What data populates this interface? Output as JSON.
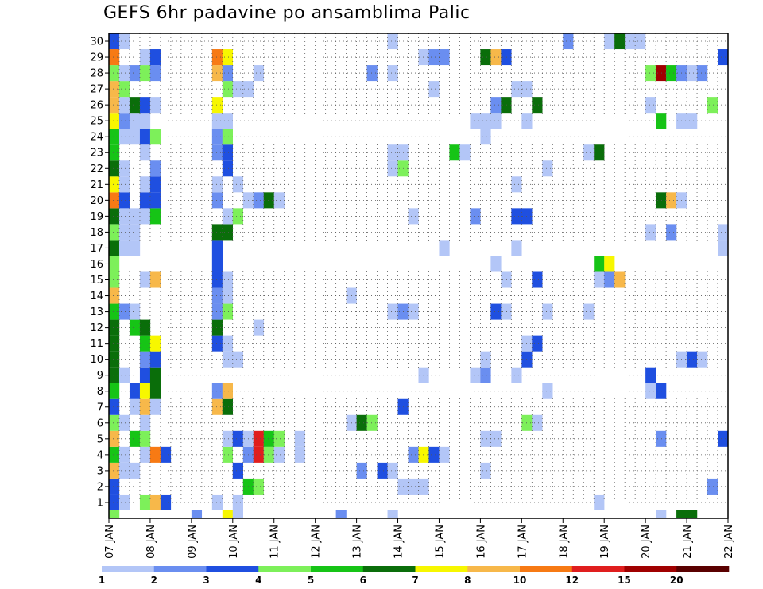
{
  "chart_data": {
    "type": "heatmap",
    "title": "GEFS 6hr padavine po ansamblima Palic",
    "xlabel": "",
    "ylabel": "",
    "x_ticks": [
      "07 JAN",
      "08 JAN",
      "09 JAN",
      "10 JAN",
      "11 JAN",
      "12 JAN",
      "13 JAN",
      "14 JAN",
      "15 JAN",
      "16 JAN",
      "17 JAN",
      "18 JAN",
      "19 JAN",
      "20 JAN",
      "21 JAN",
      "22 JAN"
    ],
    "y_ticks": [
      1,
      2,
      3,
      4,
      5,
      6,
      7,
      8,
      9,
      10,
      11,
      12,
      13,
      14,
      15,
      16,
      17,
      18,
      19,
      20,
      21,
      22,
      23,
      24,
      25,
      26,
      27,
      28,
      29,
      30
    ],
    "xlim": [
      0,
      60
    ],
    "ylim": [
      0,
      30
    ],
    "time_step_hours": 6,
    "grid": "dotted",
    "colorbar": {
      "position": "bottom",
      "labels": [
        "1",
        "2",
        "3",
        "4",
        "5",
        "6",
        "7",
        "8",
        "10",
        "12",
        "15",
        "20"
      ],
      "colors": [
        "#b3c6f7",
        "#6a8ef0",
        "#1f4fe0",
        "#7df05a",
        "#16c416",
        "#0a6e0a",
        "#f7f700",
        "#f7b84a",
        "#f77a14",
        "#e01e1e",
        "#a00000",
        "#5a0000"
      ]
    },
    "cells": [
      [
        0,
        0,
        4
      ],
      [
        8,
        0,
        2
      ],
      [
        11,
        0,
        7
      ],
      [
        12,
        0,
        1
      ],
      [
        22,
        0,
        2
      ],
      [
        27,
        0,
        1
      ],
      [
        53,
        0,
        1
      ],
      [
        55,
        0,
        6
      ],
      [
        56,
        0,
        6
      ],
      [
        0,
        1,
        3
      ],
      [
        1,
        1,
        1
      ],
      [
        3,
        1,
        4
      ],
      [
        4,
        1,
        8
      ],
      [
        5,
        1,
        3
      ],
      [
        10,
        1,
        1
      ],
      [
        12,
        1,
        1
      ],
      [
        47,
        1,
        1
      ],
      [
        0,
        2,
        3
      ],
      [
        13,
        2,
        5
      ],
      [
        14,
        2,
        4
      ],
      [
        28,
        2,
        1
      ],
      [
        29,
        2,
        1
      ],
      [
        30,
        2,
        1
      ],
      [
        58,
        2,
        2
      ],
      [
        60,
        2,
        1
      ],
      [
        62,
        2,
        2
      ],
      [
        63,
        2,
        1
      ],
      [
        64,
        2,
        1
      ],
      [
        0,
        3,
        8
      ],
      [
        1,
        3,
        1
      ],
      [
        2,
        3,
        1
      ],
      [
        12,
        3,
        3
      ],
      [
        24,
        3,
        2
      ],
      [
        26,
        3,
        3
      ],
      [
        27,
        3,
        1
      ],
      [
        36,
        3,
        1
      ],
      [
        0,
        4,
        5
      ],
      [
        1,
        4,
        1
      ],
      [
        3,
        4,
        1
      ],
      [
        4,
        4,
        9
      ],
      [
        5,
        4,
        3
      ],
      [
        11,
        4,
        4
      ],
      [
        13,
        4,
        2
      ],
      [
        14,
        4,
        10
      ],
      [
        15,
        4,
        4
      ],
      [
        16,
        4,
        1
      ],
      [
        18,
        4,
        1
      ],
      [
        29,
        4,
        2
      ],
      [
        30,
        4,
        7
      ],
      [
        31,
        4,
        3
      ],
      [
        32,
        4,
        1
      ],
      [
        0,
        5,
        8
      ],
      [
        2,
        5,
        5
      ],
      [
        3,
        5,
        4
      ],
      [
        11,
        5,
        1
      ],
      [
        12,
        5,
        3
      ],
      [
        13,
        5,
        1
      ],
      [
        14,
        5,
        10
      ],
      [
        15,
        5,
        5
      ],
      [
        16,
        5,
        4
      ],
      [
        18,
        5,
        1
      ],
      [
        36,
        5,
        1
      ],
      [
        37,
        5,
        1
      ],
      [
        53,
        5,
        2
      ],
      [
        59,
        5,
        3
      ],
      [
        60,
        5,
        7
      ],
      [
        0,
        6,
        4
      ],
      [
        1,
        6,
        1
      ],
      [
        3,
        6,
        1
      ],
      [
        23,
        6,
        1
      ],
      [
        24,
        6,
        6
      ],
      [
        25,
        6,
        4
      ],
      [
        40,
        6,
        4
      ],
      [
        41,
        6,
        1
      ],
      [
        0,
        7,
        3
      ],
      [
        2,
        7,
        1
      ],
      [
        3,
        7,
        8
      ],
      [
        4,
        7,
        1
      ],
      [
        10,
        7,
        8
      ],
      [
        11,
        7,
        6
      ],
      [
        28,
        7,
        3
      ],
      [
        0,
        8,
        5
      ],
      [
        2,
        8,
        3
      ],
      [
        3,
        8,
        7
      ],
      [
        4,
        8,
        6
      ],
      [
        10,
        8,
        2
      ],
      [
        11,
        8,
        8
      ],
      [
        42,
        8,
        1
      ],
      [
        52,
        8,
        1
      ],
      [
        53,
        8,
        3
      ],
      [
        0,
        9,
        6
      ],
      [
        1,
        9,
        1
      ],
      [
        3,
        9,
        3
      ],
      [
        4,
        9,
        6
      ],
      [
        30,
        9,
        1
      ],
      [
        35,
        9,
        1
      ],
      [
        36,
        9,
        2
      ],
      [
        39,
        9,
        1
      ],
      [
        52,
        9,
        3
      ],
      [
        0,
        10,
        6
      ],
      [
        3,
        10,
        2
      ],
      [
        4,
        10,
        3
      ],
      [
        11,
        10,
        1
      ],
      [
        12,
        10,
        1
      ],
      [
        36,
        10,
        1
      ],
      [
        40,
        10,
        3
      ],
      [
        55,
        10,
        1
      ],
      [
        56,
        10,
        3
      ],
      [
        57,
        10,
        1
      ],
      [
        0,
        11,
        6
      ],
      [
        3,
        11,
        5
      ],
      [
        4,
        11,
        7
      ],
      [
        10,
        11,
        3
      ],
      [
        11,
        11,
        1
      ],
      [
        40,
        11,
        1
      ],
      [
        41,
        11,
        3
      ],
      [
        0,
        12,
        6
      ],
      [
        2,
        12,
        5
      ],
      [
        3,
        12,
        6
      ],
      [
        10,
        12,
        6
      ],
      [
        14,
        12,
        1
      ],
      [
        0,
        13,
        5
      ],
      [
        1,
        13,
        2
      ],
      [
        2,
        13,
        1
      ],
      [
        10,
        13,
        2
      ],
      [
        11,
        13,
        4
      ],
      [
        27,
        13,
        1
      ],
      [
        28,
        13,
        2
      ],
      [
        29,
        13,
        1
      ],
      [
        37,
        13,
        3
      ],
      [
        38,
        13,
        1
      ],
      [
        42,
        13,
        1
      ],
      [
        46,
        13,
        1
      ],
      [
        0,
        14,
        8
      ],
      [
        10,
        14,
        2
      ],
      [
        11,
        14,
        1
      ],
      [
        23,
        14,
        1
      ],
      [
        0,
        15,
        4
      ],
      [
        3,
        15,
        1
      ],
      [
        4,
        15,
        8
      ],
      [
        10,
        15,
        3
      ],
      [
        11,
        15,
        1
      ],
      [
        38,
        15,
        1
      ],
      [
        41,
        15,
        3
      ],
      [
        47,
        15,
        1
      ],
      [
        48,
        15,
        2
      ],
      [
        49,
        15,
        8
      ],
      [
        0,
        16,
        4
      ],
      [
        10,
        16,
        3
      ],
      [
        37,
        16,
        1
      ],
      [
        47,
        16,
        5
      ],
      [
        48,
        16,
        7
      ],
      [
        60,
        16,
        1
      ],
      [
        0,
        17,
        6
      ],
      [
        1,
        17,
        1
      ],
      [
        2,
        17,
        1
      ],
      [
        10,
        17,
        3
      ],
      [
        32,
        17,
        1
      ],
      [
        39,
        17,
        1
      ],
      [
        59,
        17,
        1
      ],
      [
        0,
        18,
        4
      ],
      [
        1,
        18,
        1
      ],
      [
        2,
        18,
        1
      ],
      [
        10,
        18,
        6
      ],
      [
        11,
        18,
        6
      ],
      [
        52,
        18,
        1
      ],
      [
        54,
        18,
        2
      ],
      [
        59,
        18,
        1
      ],
      [
        0,
        19,
        6
      ],
      [
        1,
        19,
        1
      ],
      [
        2,
        19,
        1
      ],
      [
        3,
        19,
        1
      ],
      [
        4,
        19,
        5
      ],
      [
        11,
        19,
        1
      ],
      [
        12,
        19,
        4
      ],
      [
        29,
        19,
        1
      ],
      [
        35,
        19,
        2
      ],
      [
        39,
        19,
        3
      ],
      [
        40,
        19,
        3
      ],
      [
        0,
        20,
        9
      ],
      [
        1,
        20,
        3
      ],
      [
        3,
        20,
        3
      ],
      [
        4,
        20,
        3
      ],
      [
        10,
        20,
        2
      ],
      [
        13,
        20,
        1
      ],
      [
        14,
        20,
        2
      ],
      [
        15,
        20,
        6
      ],
      [
        16,
        20,
        1
      ],
      [
        53,
        20,
        6
      ],
      [
        54,
        20,
        8
      ],
      [
        55,
        20,
        1
      ],
      [
        0,
        21,
        7
      ],
      [
        1,
        21,
        1
      ],
      [
        3,
        21,
        1
      ],
      [
        4,
        21,
        3
      ],
      [
        10,
        21,
        1
      ],
      [
        12,
        21,
        1
      ],
      [
        39,
        21,
        1
      ],
      [
        0,
        22,
        6
      ],
      [
        1,
        22,
        1
      ],
      [
        4,
        22,
        2
      ],
      [
        11,
        22,
        3
      ],
      [
        27,
        22,
        1
      ],
      [
        28,
        22,
        4
      ],
      [
        42,
        22,
        1
      ],
      [
        0,
        23,
        5
      ],
      [
        3,
        23,
        1
      ],
      [
        10,
        23,
        2
      ],
      [
        11,
        23,
        3
      ],
      [
        27,
        23,
        1
      ],
      [
        28,
        23,
        1
      ],
      [
        33,
        23,
        5
      ],
      [
        34,
        23,
        1
      ],
      [
        46,
        23,
        1
      ],
      [
        47,
        23,
        6
      ],
      [
        0,
        24,
        5
      ],
      [
        1,
        24,
        1
      ],
      [
        2,
        24,
        1
      ],
      [
        3,
        24,
        3
      ],
      [
        4,
        24,
        4
      ],
      [
        10,
        24,
        2
      ],
      [
        11,
        24,
        4
      ],
      [
        36,
        24,
        1
      ],
      [
        0,
        25,
        7
      ],
      [
        1,
        25,
        2
      ],
      [
        2,
        25,
        1
      ],
      [
        3,
        25,
        1
      ],
      [
        10,
        25,
        1
      ],
      [
        11,
        25,
        1
      ],
      [
        35,
        25,
        1
      ],
      [
        36,
        25,
        1
      ],
      [
        37,
        25,
        1
      ],
      [
        40,
        25,
        1
      ],
      [
        53,
        25,
        5
      ],
      [
        55,
        25,
        1
      ],
      [
        56,
        25,
        1
      ],
      [
        0,
        26,
        8
      ],
      [
        1,
        26,
        1
      ],
      [
        2,
        26,
        6
      ],
      [
        3,
        26,
        3
      ],
      [
        4,
        26,
        1
      ],
      [
        10,
        26,
        7
      ],
      [
        37,
        26,
        2
      ],
      [
        38,
        26,
        6
      ],
      [
        41,
        26,
        6
      ],
      [
        52,
        26,
        1
      ],
      [
        58,
        26,
        4
      ],
      [
        60,
        26,
        2
      ],
      [
        0,
        27,
        8
      ],
      [
        1,
        27,
        4
      ],
      [
        11,
        27,
        4
      ],
      [
        12,
        27,
        1
      ],
      [
        13,
        27,
        1
      ],
      [
        31,
        27,
        1
      ],
      [
        39,
        27,
        1
      ],
      [
        40,
        27,
        1
      ],
      [
        0,
        28,
        4
      ],
      [
        1,
        28,
        1
      ],
      [
        2,
        28,
        2
      ],
      [
        3,
        28,
        4
      ],
      [
        4,
        28,
        2
      ],
      [
        10,
        28,
        8
      ],
      [
        11,
        28,
        2
      ],
      [
        14,
        28,
        1
      ],
      [
        25,
        28,
        2
      ],
      [
        27,
        28,
        1
      ],
      [
        52,
        28,
        4
      ],
      [
        53,
        28,
        11
      ],
      [
        54,
        28,
        5
      ],
      [
        55,
        28,
        2
      ],
      [
        56,
        28,
        1
      ],
      [
        57,
        28,
        2
      ],
      [
        0,
        29,
        9
      ],
      [
        3,
        29,
        1
      ],
      [
        4,
        29,
        3
      ],
      [
        10,
        29,
        9
      ],
      [
        11,
        29,
        7
      ],
      [
        30,
        29,
        1
      ],
      [
        31,
        29,
        2
      ],
      [
        32,
        29,
        2
      ],
      [
        36,
        29,
        6
      ],
      [
        37,
        29,
        8
      ],
      [
        38,
        29,
        3
      ],
      [
        59,
        29,
        3
      ],
      [
        0,
        30,
        3
      ],
      [
        1,
        30,
        1
      ],
      [
        27,
        30,
        1
      ],
      [
        44,
        30,
        2
      ],
      [
        48,
        30,
        1
      ],
      [
        49,
        30,
        6
      ],
      [
        50,
        30,
        1
      ],
      [
        51,
        30,
        1
      ]
    ]
  }
}
